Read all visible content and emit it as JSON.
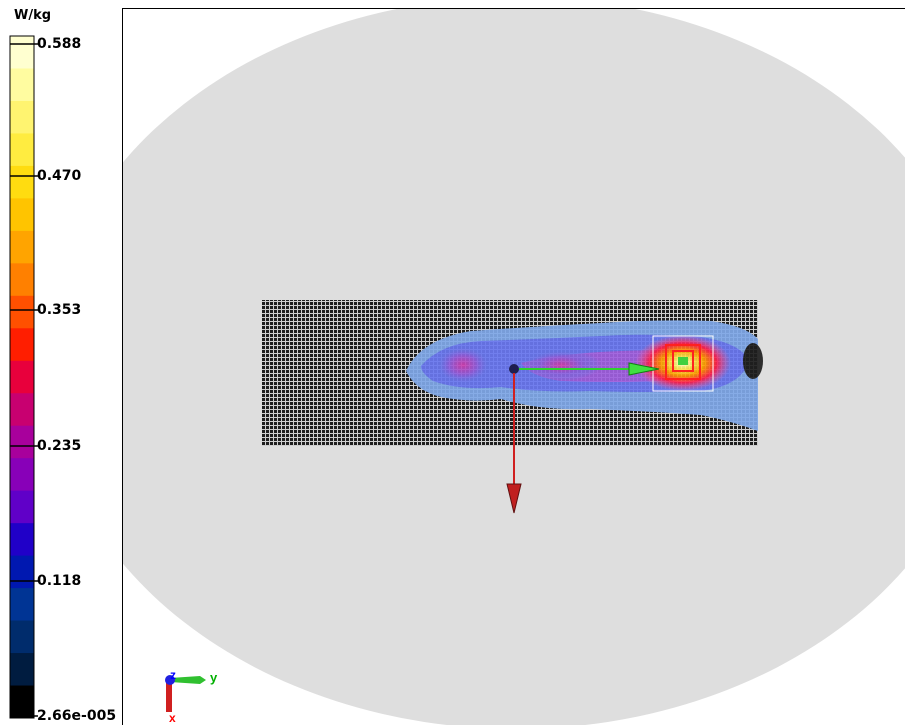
{
  "legend": {
    "unit": "W/kg",
    "ticks": [
      "0.588",
      "0.470",
      "0.353",
      "0.235",
      "0.118",
      "2.66e-005"
    ],
    "colors": [
      "#ffffd0",
      "#fffca0",
      "#fff470",
      "#ffec40",
      "#ffdc10",
      "#ffc400",
      "#ffa400",
      "#ff8000",
      "#ff5000",
      "#ff1e00",
      "#e8003c",
      "#c80070",
      "#a8009c",
      "#8800b8",
      "#6000c8",
      "#2000c8",
      "#0018b0",
      "#003494",
      "#002c6c",
      "#001c40",
      "#000000"
    ],
    "colors_order": "top-to-bottom"
  },
  "scene": {
    "background_color": "#dedede",
    "grid_color": "#c8c8c8",
    "phantom_color": "#1e1e1e"
  },
  "triad": {
    "z_label": "z",
    "y_label": "y",
    "x_label": "x",
    "z_color": "#0000ff",
    "y_color": "#00b000",
    "x_color": "#ff0000"
  }
}
